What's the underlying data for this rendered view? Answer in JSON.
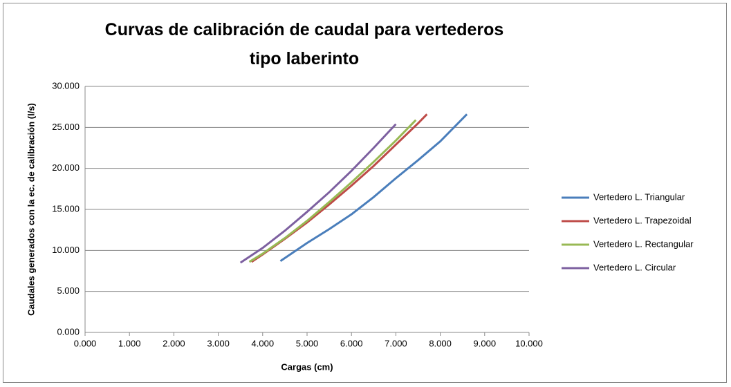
{
  "chart_data": {
    "type": "line",
    "title": "Curvas de calibración de caudal para vertederos tipo laberinto",
    "x_label": "Cargas (cm)",
    "y_label": "Caudales generados con la ec. de calibración (l/s)",
    "xlim": [
      0,
      10
    ],
    "xticks": [
      {
        "value": 0,
        "label": "0.000"
      },
      {
        "value": 1,
        "label": "1.000"
      },
      {
        "value": 2,
        "label": "2.000"
      },
      {
        "value": 3,
        "label": "3.000"
      },
      {
        "value": 4,
        "label": "4.000"
      },
      {
        "value": 5,
        "label": "5.000"
      },
      {
        "value": 6,
        "label": "6.000"
      },
      {
        "value": 7,
        "label": "7.000"
      },
      {
        "value": 8,
        "label": "8.000"
      },
      {
        "value": 9,
        "label": "9.000"
      },
      {
        "value": 10,
        "label": "10.000"
      }
    ],
    "ylim": [
      0,
      30
    ],
    "yticks": [
      {
        "value": 0,
        "label": "0.000"
      },
      {
        "value": 5,
        "label": "5.000"
      },
      {
        "value": 10,
        "label": "10.000"
      },
      {
        "value": 15,
        "label": "15.000"
      },
      {
        "value": 20,
        "label": "20.000"
      },
      {
        "value": 25,
        "label": "25.000"
      },
      {
        "value": 30,
        "label": "30.000"
      }
    ],
    "grid": true,
    "legend": "right",
    "series": [
      {
        "name": "Vertedero L. Triangular",
        "color": "#4a7ebb",
        "x": [
          4.4,
          5,
          5.5,
          6,
          6.5,
          7,
          7.5,
          8,
          8.6
        ],
        "values": [
          8.7,
          10.9,
          12.6,
          14.4,
          16.5,
          18.8,
          21,
          23.3,
          26.6
        ]
      },
      {
        "name": "Vertedero L. Trapezoidal",
        "color": "#be4b48",
        "x": [
          3.75,
          4,
          4.5,
          5,
          5.5,
          6,
          6.5,
          7,
          7.5,
          7.7
        ],
        "values": [
          8.6,
          9.5,
          11.4,
          13.4,
          15.6,
          17.9,
          20.3,
          22.9,
          25.5,
          26.6
        ]
      },
      {
        "name": "Vertedero L. Rectangular",
        "color": "#98b954",
        "x": [
          3.7,
          4,
          4.5,
          5,
          5.5,
          6,
          6.5,
          7,
          7.45
        ],
        "values": [
          8.6,
          9.6,
          11.5,
          13.6,
          15.9,
          18.3,
          20.8,
          23.4,
          25.9
        ]
      },
      {
        "name": "Vertedero L. Circular",
        "color": "#7d60a0",
        "x": [
          3.5,
          4,
          4.5,
          5,
          5.5,
          6,
          6.5,
          7
        ],
        "values": [
          8.5,
          10.3,
          12.4,
          14.7,
          17.1,
          19.7,
          22.5,
          25.4
        ]
      }
    ]
  }
}
